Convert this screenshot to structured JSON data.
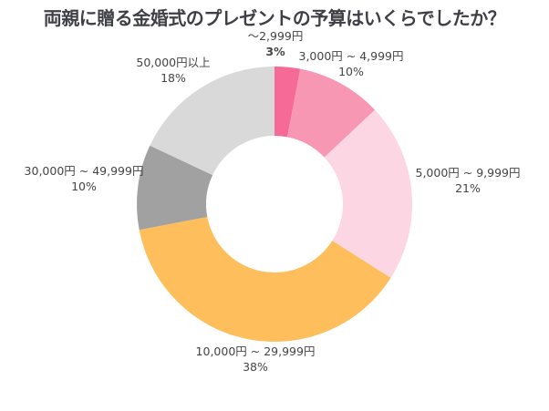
{
  "chart_data": {
    "type": "pie",
    "variant": "donut",
    "title": "両親に贈る金婚式のプレゼントの予算はいくらでしたか？",
    "unit": "%",
    "categories": [
      "～2,999円",
      "3,000円 ~ 4,999円",
      "5,000円 ~ 9,999円",
      "10,000円 ~ 29,999円",
      "30,000円 ~ 49,999円",
      "50,000円以上"
    ],
    "values": [
      3,
      10,
      21,
      38,
      10,
      18
    ],
    "value_labels": [
      "3%",
      "10%",
      "21%",
      "38%",
      "10%",
      "18%"
    ],
    "colors": [
      "#f56a96",
      "#f797b3",
      "#fdd6e4",
      "#fdbe5b",
      "#a1a1a1",
      "#d9d9d9"
    ],
    "start": "12 o'clock, clockwise"
  }
}
